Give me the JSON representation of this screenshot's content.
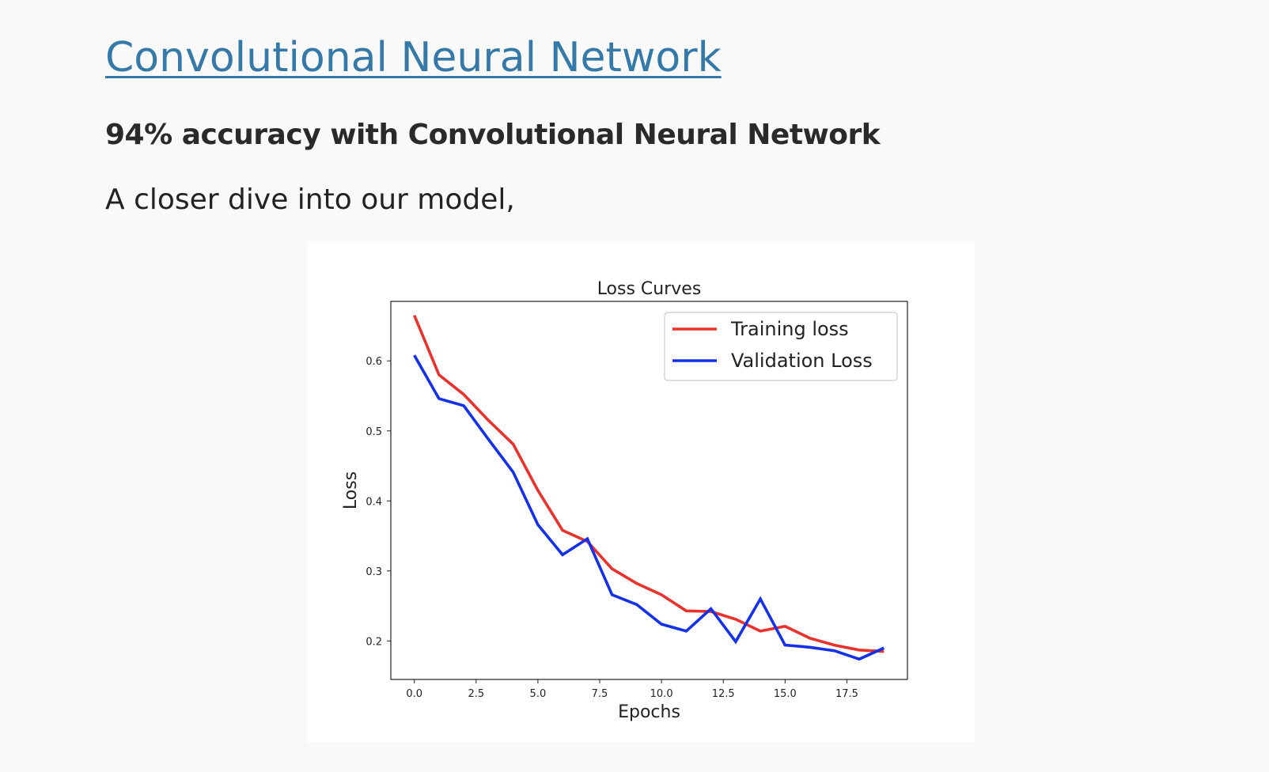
{
  "header": {
    "title_link": "Convolutional Neural Network",
    "subheading": "94% accuracy with Convolutional Neural Network",
    "intro": "A closer dive into our model,"
  },
  "colors": {
    "link": "#3579a8",
    "training": "#e8322b",
    "validation": "#1431e8"
  },
  "chart_data": {
    "type": "line",
    "title": "Loss Curves",
    "xlabel": "Epochs",
    "ylabel": "Loss",
    "xlim": [
      -0.95,
      19.95
    ],
    "ylim": [
      0.145,
      0.685
    ],
    "xticks": [
      0.0,
      2.5,
      5.0,
      7.5,
      10.0,
      12.5,
      15.0,
      17.5
    ],
    "xtick_labels": [
      "0.0",
      "2.5",
      "5.0",
      "7.5",
      "10.0",
      "12.5",
      "15.0",
      "17.5"
    ],
    "yticks": [
      0.2,
      0.3,
      0.4,
      0.5,
      0.6
    ],
    "ytick_labels": [
      "0.2",
      "0.3",
      "0.4",
      "0.5",
      "0.6"
    ],
    "legend_position": "top-right",
    "grid": false,
    "x": [
      0,
      1,
      2,
      3,
      4,
      5,
      6,
      7,
      8,
      9,
      10,
      11,
      12,
      13,
      14,
      15,
      16,
      17,
      18,
      19
    ],
    "series": [
      {
        "name": "Training loss",
        "color": "#e8322b",
        "values": [
          0.665,
          0.58,
          0.552,
          0.515,
          0.481,
          0.415,
          0.358,
          0.342,
          0.303,
          0.282,
          0.266,
          0.243,
          0.242,
          0.231,
          0.214,
          0.221,
          0.204,
          0.194,
          0.187,
          0.185
        ]
      },
      {
        "name": "Validation Loss",
        "color": "#1431e8",
        "values": [
          0.608,
          0.546,
          0.536,
          0.488,
          0.441,
          0.366,
          0.323,
          0.346,
          0.266,
          0.252,
          0.224,
          0.214,
          0.246,
          0.199,
          0.26,
          0.194,
          0.191,
          0.186,
          0.174,
          0.19
        ]
      }
    ]
  }
}
